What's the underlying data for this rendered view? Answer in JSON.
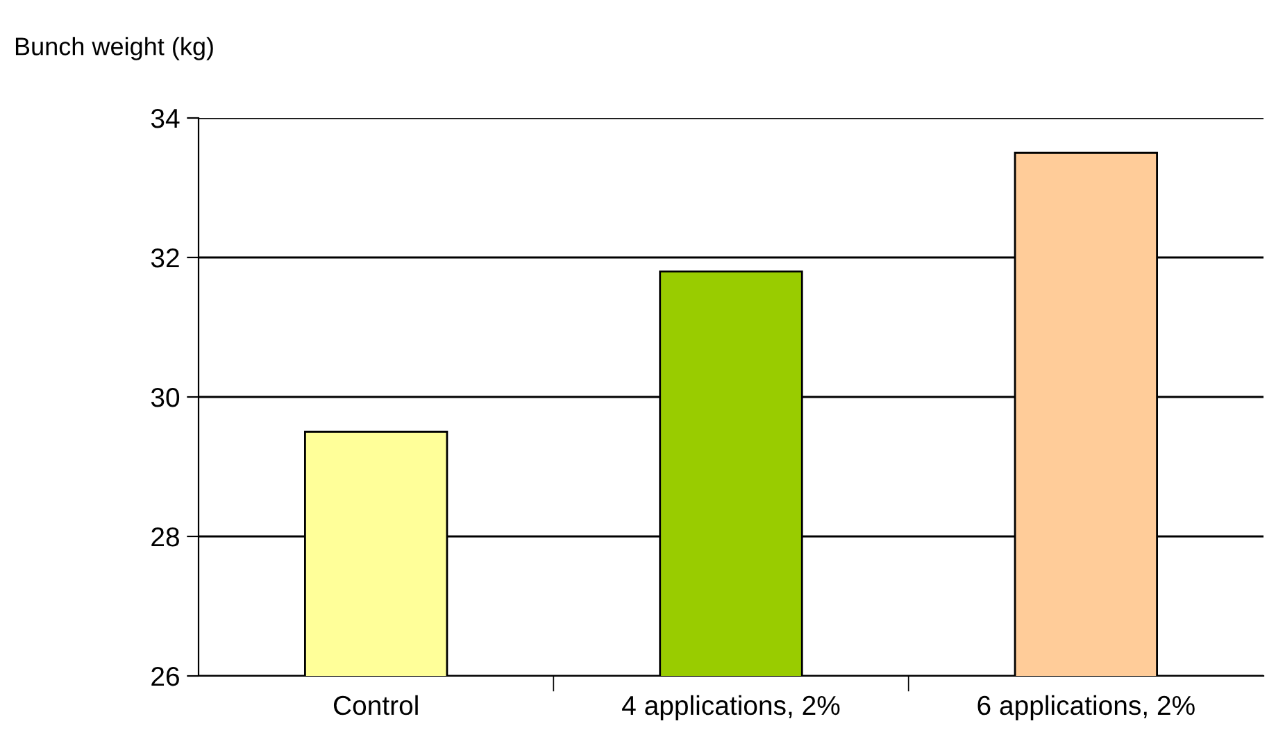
{
  "chart_data": {
    "type": "bar",
    "ylabel": "Bunch weight (kg)",
    "categories": [
      "Control",
      "4 applications, 2%",
      "6 applications, 2%"
    ],
    "values": [
      29.5,
      31.8,
      33.5
    ],
    "colors": [
      "#ffff99",
      "#99cc00",
      "#ffcc99"
    ],
    "ylim": [
      26,
      34
    ],
    "yticks": [
      26,
      28,
      30,
      32,
      34
    ],
    "grid": "y"
  }
}
